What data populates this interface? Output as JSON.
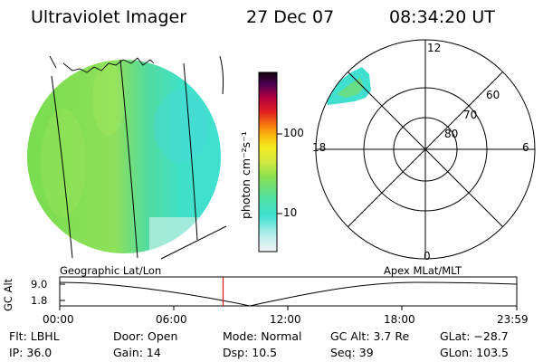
{
  "header": {
    "instrument": "Ultraviolet Imager",
    "date": "27 Dec 07",
    "time": "08:34:20 UT"
  },
  "colorbar": {
    "label": "photon cm⁻²s⁻¹",
    "ticks": [
      "100",
      "10"
    ]
  },
  "polar_plot": {
    "mlt_labels": {
      "top": "12",
      "right": "6",
      "bottom": "0",
      "left": "18"
    },
    "lat_labels": [
      "60",
      "70",
      "80"
    ]
  },
  "timeline": {
    "left_caption": "Geographic Lat/Lon",
    "right_caption": "Apex MLat/MLT",
    "axis_label": "GC Alt",
    "y_ticks": [
      "9.0",
      "1.8"
    ],
    "x_ticks": [
      "00:00",
      "06:00",
      "12:00",
      "18:00",
      "23:59"
    ],
    "current_time_hours": 8.57
  },
  "info": {
    "filter": "Flt: LBHL",
    "ip": "IP: 36.0",
    "door": "Door: Open",
    "gain": "Gain: 14",
    "mode": "Mode: Normal",
    "dsp": "Dsp:   10.5",
    "gc_alt": "GC Alt: 3.7 Re",
    "seq": "Seq: 39",
    "glat": "GLat: −28.7",
    "glon": "GLon: 103.5"
  },
  "colors": {
    "marker": "#e01010",
    "earth_green": "#78dc50",
    "earth_cyan": "#40e0c8"
  }
}
